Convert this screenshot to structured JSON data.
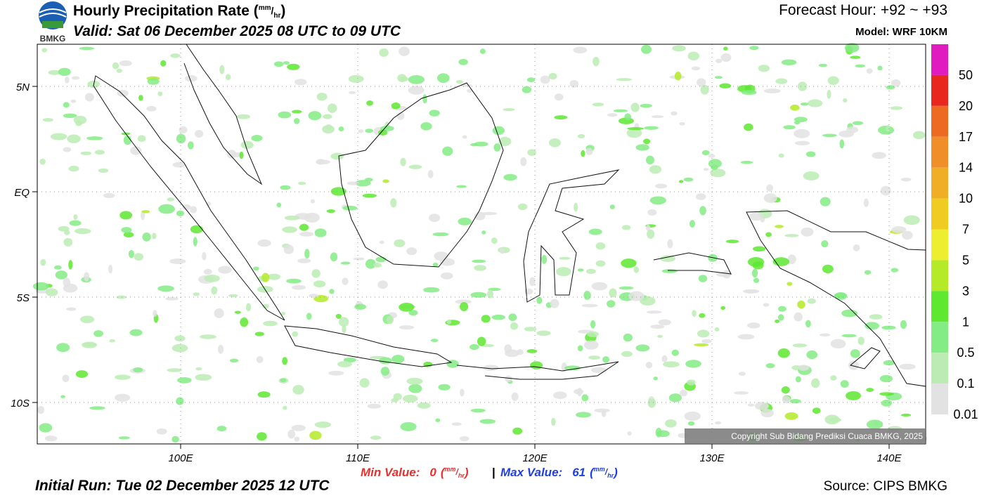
{
  "header": {
    "logo": "BMKG",
    "title": "Hourly Precipitation Rate",
    "unit": {
      "open": "(",
      "num": "mm",
      "slash": "/",
      "den": "hr",
      "close": ")"
    },
    "valid": "Valid: Sat 06 December 2025 08 UTC to 09 UTC",
    "forecast": "Forecast Hour: +92 ~ +93",
    "model": "Model: WRF 10KM"
  },
  "map": {
    "lat_labels": [
      "5N",
      "EQ",
      "5S",
      "10S"
    ],
    "lon_labels": [
      "100E",
      "110E",
      "120E",
      "130E",
      "140E"
    ],
    "copyright": "Copyright Sub Bidang Prediksi Cuaca BMKG, 2025"
  },
  "legend": {
    "labels": [
      "50",
      "20",
      "17",
      "14",
      "10",
      "7",
      "5",
      "3",
      "1",
      "0.5",
      "0.1",
      "0.01"
    ],
    "colors": [
      "#e01cc0",
      "#e8281e",
      "#ec6a22",
      "#f08e2a",
      "#f0ae26",
      "#f0cc22",
      "#eeee30",
      "#b4ea28",
      "#5ee830",
      "#84ec84",
      "#bcecb4",
      "#e2e2e2"
    ]
  },
  "footer": {
    "min_label": "Min Value:",
    "min_value": "0",
    "separator": "|",
    "max_label": "Max Value:",
    "max_value": "61",
    "initial_run": "Initial Run: Tue 02 December 2025 12 UTC",
    "source": "Source: CIPS BMKG"
  }
}
